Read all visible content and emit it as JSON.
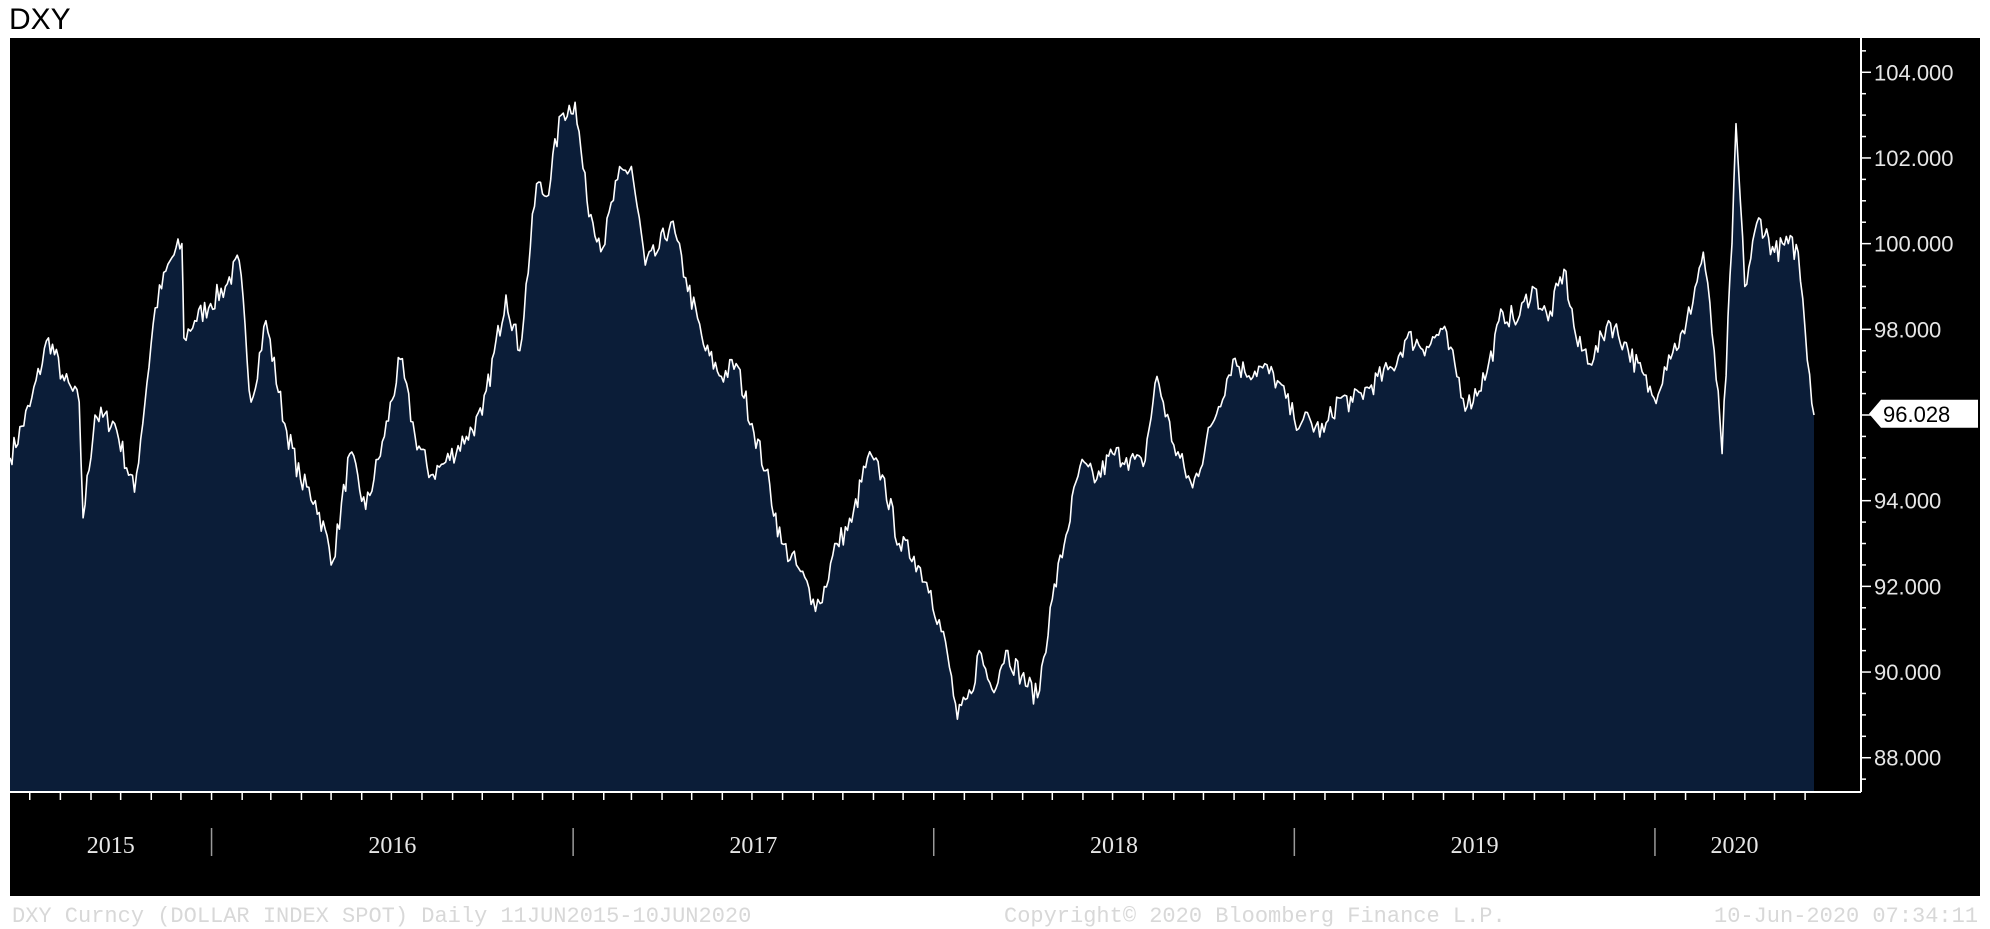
{
  "page_title": "DXY",
  "footer": {
    "left": "DXY Curncy (DOLLAR INDEX SPOT)  Daily 11JUN2015-10JUN2020",
    "center": "Copyright© 2020 Bloomberg Finance L.P.",
    "right": "10-Jun-2020 07:34:11"
  },
  "colors": {
    "background": "#000000",
    "area_fill": "#0b1d38",
    "line": "#ffffff",
    "axis": "#ffffff",
    "text": "#e6e6e6",
    "last_value_box": "#ffffff"
  },
  "chart_data": {
    "type": "area",
    "title": "",
    "xlabel": "",
    "ylabel": "",
    "x_range": [
      "2015-06-11",
      "2020-06-10"
    ],
    "ylim": [
      87.2,
      104.8
    ],
    "y_axis_side": "right",
    "yticks": [
      "104.000",
      "102.000",
      "100.000",
      "98.000",
      "96.000",
      "94.000",
      "92.000",
      "90.000",
      "88.000"
    ],
    "year_labels": [
      "2015",
      "2016",
      "2017",
      "2018",
      "2019",
      "2020"
    ],
    "last_value_label": "96.028",
    "grid": false,
    "series": [
      {
        "x": [
          "2015-06-11",
          "2015-07-01",
          "2015-07-20",
          "2015-08-05",
          "2015-08-20",
          "2015-08-24",
          "2015-09-05",
          "2015-09-25",
          "2015-10-15",
          "2015-11-05",
          "2015-11-20",
          "2015-12-02",
          "2015-12-04",
          "2015-12-15",
          "2015-12-31",
          "2016-01-15",
          "2016-01-29",
          "2016-02-10",
          "2016-02-25",
          "2016-03-15",
          "2016-03-31",
          "2016-04-15",
          "2016-05-03",
          "2016-05-20",
          "2016-06-05",
          "2016-06-24",
          "2016-07-10",
          "2016-07-25",
          "2016-08-10",
          "2016-08-25",
          "2016-09-15",
          "2016-10-01",
          "2016-10-25",
          "2016-11-08",
          "2016-11-25",
          "2016-12-05",
          "2016-12-20",
          "2017-01-03",
          "2017-01-15",
          "2017-01-31",
          "2017-02-15",
          "2017-03-01",
          "2017-03-15",
          "2017-03-27",
          "2017-04-10",
          "2017-04-25",
          "2017-05-15",
          "2017-05-31",
          "2017-06-15",
          "2017-07-01",
          "2017-07-15",
          "2017-07-31",
          "2017-08-15",
          "2017-09-01",
          "2017-09-08",
          "2017-09-25",
          "2017-10-10",
          "2017-10-26",
          "2017-11-10",
          "2017-11-27",
          "2017-12-12",
          "2017-12-29",
          "2018-01-15",
          "2018-01-25",
          "2018-02-08",
          "2018-02-16",
          "2018-03-01",
          "2018-03-15",
          "2018-03-31",
          "2018-04-16",
          "2018-05-01",
          "2018-05-15",
          "2018-05-29",
          "2018-06-15",
          "2018-07-01",
          "2018-07-15",
          "2018-08-01",
          "2018-08-15",
          "2018-09-01",
          "2018-09-20",
          "2018-10-10",
          "2018-10-31",
          "2018-11-12",
          "2018-11-30",
          "2018-12-15",
          "2019-01-01",
          "2019-01-10",
          "2019-01-31",
          "2019-02-15",
          "2019-03-01",
          "2019-03-20",
          "2019-04-10",
          "2019-04-25",
          "2019-05-15",
          "2019-05-31",
          "2019-06-25",
          "2019-07-15",
          "2019-07-31",
          "2019-08-15",
          "2019-08-30",
          "2019-09-15",
          "2019-10-01",
          "2019-10-15",
          "2019-10-31",
          "2019-11-15",
          "2019-12-01",
          "2019-12-31",
          "2020-01-15",
          "2020-01-31",
          "2020-02-19",
          "2020-03-01",
          "2020-03-09",
          "2020-03-19",
          "2020-03-23",
          "2020-04-01",
          "2020-04-15",
          "2020-05-01",
          "2020-05-15",
          "2020-05-25",
          "2020-06-01",
          "2020-06-10"
        ],
        "y": [
          95.0,
          96.2,
          97.8,
          96.8,
          96.3,
          93.6,
          96.0,
          95.8,
          94.2,
          98.5,
          99.6,
          100.0,
          97.8,
          98.2,
          98.6,
          99.0,
          99.6,
          96.3,
          98.2,
          95.8,
          94.5,
          94.0,
          92.6,
          95.1,
          93.8,
          95.5,
          97.3,
          95.5,
          94.6,
          94.9,
          95.5,
          96.0,
          98.8,
          97.5,
          101.4,
          101.1,
          103.0,
          103.3,
          101.0,
          99.9,
          101.5,
          101.8,
          99.5,
          99.8,
          100.5,
          99.2,
          97.5,
          96.9,
          97.2,
          95.8,
          94.7,
          93.0,
          92.5,
          91.7,
          91.6,
          93.0,
          93.5,
          95.0,
          94.6,
          93.0,
          92.7,
          91.9,
          90.4,
          88.9,
          89.5,
          90.5,
          89.6,
          90.5,
          89.9,
          89.4,
          91.7,
          93.2,
          94.8,
          94.5,
          95.1,
          95.0,
          94.8,
          96.9,
          95.3,
          94.3,
          95.8,
          97.3,
          97.0,
          97.1,
          96.8,
          95.9,
          95.9,
          95.6,
          96.4,
          96.3,
          96.7,
          97.1,
          97.8,
          97.6,
          98.0,
          96.2,
          97.0,
          98.4,
          98.2,
          99.0,
          98.2,
          99.4,
          97.6,
          97.3,
          98.2,
          97.7,
          96.4,
          97.4,
          97.9,
          99.8,
          97.5,
          95.1,
          100.0,
          102.8,
          99.0,
          100.6,
          99.8,
          100.0,
          99.8,
          98.0,
          96.0
        ]
      }
    ]
  }
}
